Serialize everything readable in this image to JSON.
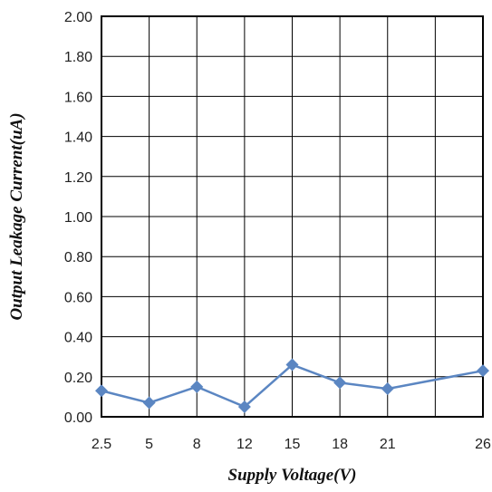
{
  "chart_data": {
    "type": "line",
    "title": "",
    "xlabel": "Supply Voltage(V)",
    "ylabel": "Output Leakage Current(uA)",
    "categories": [
      "2.5",
      "5",
      "8",
      "12",
      "15",
      "18",
      "21",
      "26"
    ],
    "y_ticks": [
      "0.00",
      "0.20",
      "0.40",
      "0.60",
      "0.80",
      "1.00",
      "1.20",
      "1.40",
      "1.60",
      "1.80",
      "2.00"
    ],
    "ylim": [
      0,
      2.0
    ],
    "grid": true,
    "legend": "none",
    "series": [
      {
        "values": [
          0.13,
          0.07,
          0.15,
          0.05,
          0.26,
          0.17,
          0.14,
          0.23
        ],
        "color": "#5b86c2",
        "marker": "diamond"
      }
    ]
  }
}
